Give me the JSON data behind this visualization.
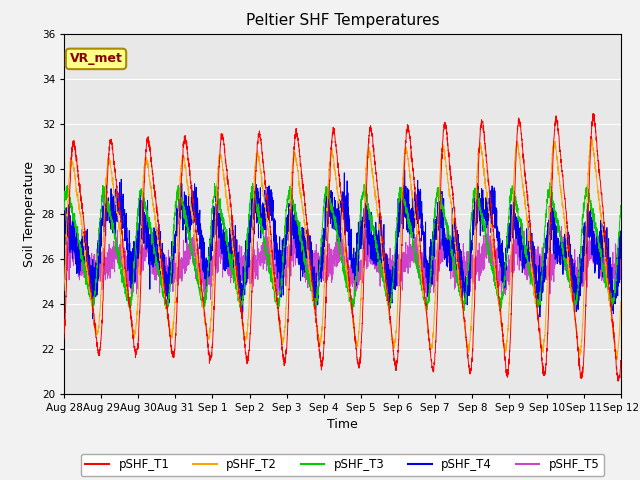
{
  "title": "Peltier SHF Temperatures",
  "ylabel": "Soil Temperature",
  "xlabel": "Time",
  "annotation": "VR_met",
  "ylim": [
    20,
    36
  ],
  "yticks": [
    20,
    22,
    24,
    26,
    28,
    30,
    32,
    34,
    36
  ],
  "xtick_labels": [
    "Aug 28",
    "Aug 29",
    "Aug 30",
    "Aug 31",
    "Sep 1",
    "Sep 2",
    "Sep 3",
    "Sep 4",
    "Sep 5",
    "Sep 6",
    "Sep 7",
    "Sep 8",
    "Sep 9",
    "Sep 10",
    "Sep 11",
    "Sep 12"
  ],
  "colors": {
    "pSHF_T1": "#FF0000",
    "pSHF_T2": "#FFA500",
    "pSHF_T3": "#00CC00",
    "pSHF_T4": "#0000EE",
    "pSHF_T5": "#CC44CC"
  },
  "background_color": "#E8E8E8",
  "fig_background": "#F2F2F2",
  "annotation_bg": "#FFFF88",
  "annotation_border": "#AA8800",
  "annotation_text_color": "#880000"
}
